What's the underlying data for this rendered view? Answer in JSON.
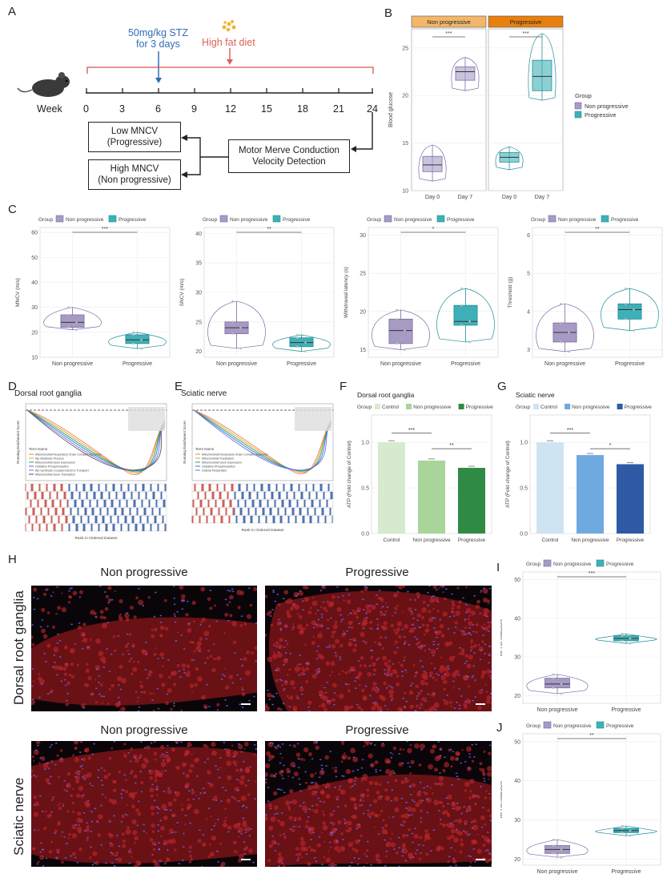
{
  "panel_labels": {
    "A": "A",
    "B": "B",
    "C": "C",
    "D": "D",
    "E": "E",
    "F": "F",
    "G": "G",
    "H": "H",
    "I": "I",
    "J": "J"
  },
  "panelA": {
    "stz": "50mg/kg STZ",
    "stz2": "for 3 days",
    "hfd": "High fat diet",
    "week_label": "Week",
    "weeks": [
      "0",
      "3",
      "6",
      "9",
      "12",
      "15",
      "18",
      "21",
      "24"
    ],
    "low": "Low MNCV",
    "low2": "(Progressive)",
    "high": "High MNCV",
    "high2": "(Non progressive)",
    "motor": "Motor Merve Conduction",
    "motor2": "Velocity Detection",
    "colors": {
      "stz": "#2e6db4",
      "hfd": "#e0615a",
      "timeline": "#d9534f"
    }
  },
  "legend_common": {
    "group": "Group",
    "np": "Non progressive",
    "p": "Progressive"
  },
  "colors": {
    "np": "#a79bc4",
    "p": "#3fb0b8",
    "np_edge": "#7a6aa8",
    "p_edge": "#1f8f98"
  },
  "chart_data": [
    {
      "id": "B",
      "type": "box",
      "ylabel": "Blood glucose",
      "facets": [
        "Non progressive",
        "Progressive"
      ],
      "facet_colors": [
        "#f2b76a",
        "#e8800f"
      ],
      "categories": [
        "Day 0",
        "Day 7"
      ],
      "ylim": [
        10,
        27
      ],
      "yticks": [
        10,
        15,
        20,
        25
      ],
      "sig": [
        "***",
        "***"
      ],
      "groups": [
        {
          "facet": "Non progressive",
          "x": "Day 0",
          "q1": 12,
          "median": 12.7,
          "q3": 13.6,
          "min": 11,
          "max": 14.8
        },
        {
          "facet": "Non progressive",
          "x": "Day 7",
          "q1": 21.6,
          "median": 22.5,
          "q3": 23,
          "min": 20.5,
          "max": 24
        },
        {
          "facet": "Progressive",
          "x": "Day 0",
          "q1": 13,
          "median": 13.5,
          "q3": 14,
          "min": 12.2,
          "max": 14.6
        },
        {
          "facet": "Progressive",
          "x": "Day 7",
          "q1": 20.5,
          "median": 22,
          "q3": 23.7,
          "min": 19.5,
          "max": 26.5
        }
      ]
    },
    {
      "id": "C1",
      "type": "box",
      "ylabel": "MNCV (m/s)",
      "ylim": [
        10,
        62
      ],
      "yticks": [
        10,
        20,
        30,
        40,
        50,
        60
      ],
      "sig": "***",
      "categories": [
        "Non progressive",
        "Progressive"
      ],
      "groups": [
        {
          "q1": 22,
          "median": 24,
          "q3": 27,
          "min": 21,
          "max": 30
        },
        {
          "q1": 15.5,
          "median": 17,
          "q3": 19,
          "min": 13.5,
          "max": 20
        }
      ]
    },
    {
      "id": "C2",
      "type": "box",
      "ylabel": "SNCV (m/s)",
      "ylim": [
        19,
        41
      ],
      "yticks": [
        20,
        25,
        30,
        35,
        40
      ],
      "sig": "**",
      "categories": [
        "Non progressive",
        "Progressive"
      ],
      "groups": [
        {
          "q1": 23,
          "median": 24,
          "q3": 25,
          "min": 20.5,
          "max": 28.5
        },
        {
          "q1": 20.8,
          "median": 21.5,
          "q3": 22.3,
          "min": 20,
          "max": 22.8
        }
      ]
    },
    {
      "id": "C3",
      "type": "box",
      "ylabel": "Withdrawal latency (s)",
      "ylim": [
        14,
        31
      ],
      "yticks": [
        15,
        20,
        25,
        30
      ],
      "sig": "*",
      "categories": [
        "Non progressive",
        "Progressive"
      ],
      "groups": [
        {
          "q1": 15.8,
          "median": 17.5,
          "q3": 19,
          "min": 15,
          "max": 20.2
        },
        {
          "q1": 18.2,
          "median": 18.7,
          "q3": 20.8,
          "min": 16,
          "max": 23
        }
      ]
    },
    {
      "id": "C4",
      "type": "box",
      "ylabel": "Threshold (g)",
      "ylim": [
        2.8,
        6.2
      ],
      "yticks": [
        3,
        4,
        5,
        6
      ],
      "sig": "**",
      "categories": [
        "Non progressive",
        "Progressive"
      ],
      "groups": [
        {
          "q1": 3.2,
          "median": 3.45,
          "q3": 3.7,
          "min": 2.95,
          "max": 4.2
        },
        {
          "q1": 3.8,
          "median": 4.05,
          "q3": 4.2,
          "min": 3.5,
          "max": 4.6
        }
      ]
    },
    {
      "id": "F",
      "type": "bar",
      "title": "Dorsal root ganglia",
      "ylabel": "ATP (Fold change of Control)",
      "legend": [
        "Control",
        "Non progressive",
        "Progressive"
      ],
      "colors": [
        "#d7ead0",
        "#a9d49a",
        "#2f8a46"
      ],
      "categories": [
        "Control",
        "Non progressive",
        "Progressive"
      ],
      "values": [
        1.0,
        0.8,
        0.72
      ],
      "ylim": [
        0,
        1.3
      ],
      "yticks": [
        0,
        0.5,
        1.0
      ],
      "ytick_labels": [
        "0.0",
        "0.5",
        "1.0"
      ],
      "sig": [
        "***",
        "**"
      ]
    },
    {
      "id": "G",
      "type": "bar",
      "title": "Sciatic nerve",
      "ylabel": "ATP (Fold change of Control)",
      "legend": [
        "Control",
        "Non progressive",
        "Progressive"
      ],
      "colors": [
        "#cfe4f3",
        "#6ea9e0",
        "#2e5aa6"
      ],
      "categories": [
        "Control",
        "Non progressive",
        "Progressive"
      ],
      "values": [
        1.0,
        0.86,
        0.76
      ],
      "ylim": [
        0,
        1.3
      ],
      "yticks": [
        0,
        0.5,
        1.0
      ],
      "ytick_labels": [
        "0.0",
        "0.5",
        "1.0"
      ],
      "sig": [
        "***",
        "*"
      ]
    },
    {
      "id": "I",
      "type": "box",
      "ylabel": "MFI of mitoSOX",
      "ylim": [
        18,
        52
      ],
      "yticks": [
        20,
        30,
        40,
        50
      ],
      "sig": "***",
      "categories": [
        "Non progressive",
        "Progressive"
      ],
      "groups": [
        {
          "q1": 22,
          "median": 23,
          "q3": 24.5,
          "min": 20.5,
          "max": 25.5
        },
        {
          "q1": 34.2,
          "median": 34.8,
          "q3": 35.5,
          "min": 33.5,
          "max": 36
        }
      ]
    },
    {
      "id": "J",
      "type": "box",
      "ylabel": "MFI of mitoSOX",
      "ylim": [
        18.5,
        52
      ],
      "yticks": [
        20,
        30,
        40,
        50
      ],
      "sig": "**",
      "categories": [
        "Non progressive",
        "Progressive"
      ],
      "groups": [
        {
          "q1": 21.5,
          "median": 22.5,
          "q3": 23.5,
          "min": 20.5,
          "max": 25
        },
        {
          "q1": 26.8,
          "median": 27.3,
          "q3": 27.9,
          "min": 26,
          "max": 28.5
        }
      ]
    }
  ],
  "panelD": {
    "title": "Dorsal root ganglia",
    "ylabel": "Running Enrichment Score",
    "xlabel": "Rank in Ordered Dataset",
    "legend_title": "Term Name",
    "terms": [
      "Mitochondrial Respiratory Chain Complex Assembly",
      "Atp Metabolic Process",
      "Mitochondrial Gene Expression",
      "Oxidative Phosphorylation",
      "Atp Synthesis Coupled Electron Transport",
      "Mitochondrial Gene Translation"
    ]
  },
  "panelE": {
    "title": "Sciatic nerve",
    "ylabel": "Running Enrichment Score",
    "xlabel": "Rank in Ordered Dataset",
    "legend_title": "Term Name",
    "terms": [
      "Mitochondrial Respiratory Chain Complex Assembly",
      "Mitochondrial Translation",
      "Mitochondrial Gene Expression",
      "Oxidative Phosphorylation",
      "Cellular Respiration"
    ]
  },
  "panelH": {
    "row1": "Dorsal root ganglia",
    "row2": "Sciatic nerve",
    "col_np": "Non progressive",
    "col_p": "Progressive"
  }
}
